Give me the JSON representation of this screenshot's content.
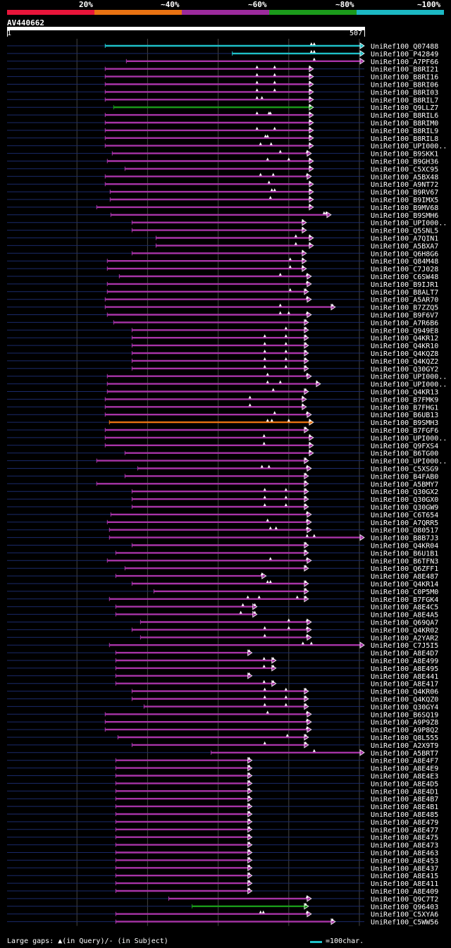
{
  "legend": {
    "colors": [
      "#e8153a",
      "#e87212",
      "#9b2a9c",
      "#1b9a1b",
      "#1cb8c4"
    ],
    "labels": [
      "20%",
      "~40%",
      "~60%",
      "~80%",
      "~100%"
    ]
  },
  "query": {
    "id": "AV440662",
    "start": "1",
    "end": "507",
    "length": 507
  },
  "colors": {
    "cyan": "#1ec0c8",
    "magenta": "#a834a8",
    "green": "#1a9a1a",
    "orange": "#e87212",
    "query_line": "#1a2a6a",
    "grid": "#444"
  },
  "hits": [
    {
      "name": "UniRef100_Q07488",
      "s": 140,
      "e": 507,
      "c": "cyan",
      "t": [
        432,
        436
      ]
    },
    {
      "name": "UniRef100_P42849",
      "s": 320,
      "e": 507,
      "c": "cyan",
      "t": [
        432,
        436
      ]
    },
    {
      "name": "UniRef100_A7PF66",
      "s": 170,
      "e": 507,
      "c": "magenta",
      "t": [
        436
      ]
    },
    {
      "name": "UniRef100_B8RI21",
      "s": 140,
      "e": 435,
      "c": "magenta",
      "t": [
        355,
        380,
        430
      ]
    },
    {
      "name": "UniRef100_B8RI16",
      "s": 140,
      "e": 435,
      "c": "magenta",
      "t": [
        355,
        380,
        430
      ]
    },
    {
      "name": "UniRef100_B8RI06",
      "s": 140,
      "e": 435,
      "c": "magenta",
      "t": [
        355,
        380,
        430
      ]
    },
    {
      "name": "UniRef100_B8RI03",
      "s": 140,
      "e": 435,
      "c": "magenta",
      "t": [
        355,
        380,
        430
      ]
    },
    {
      "name": "UniRef100_B8RIL7",
      "s": 140,
      "e": 435,
      "c": "magenta",
      "t": [
        355,
        362,
        430
      ]
    },
    {
      "name": "UniRef100_Q9LLZ7",
      "s": 152,
      "e": 435,
      "c": "green",
      "t": [
        430
      ]
    },
    {
      "name": "UniRef100_B8RIL6",
      "s": 140,
      "e": 435,
      "c": "magenta",
      "t": [
        355,
        372,
        374,
        430
      ]
    },
    {
      "name": "UniRef100_B8RIM0",
      "s": 140,
      "e": 435,
      "c": "magenta",
      "t": [
        430
      ]
    },
    {
      "name": "UniRef100_B8RIL9",
      "s": 140,
      "e": 435,
      "c": "magenta",
      "t": [
        355,
        380,
        430
      ]
    },
    {
      "name": "UniRef100_B8RIL8",
      "s": 140,
      "e": 435,
      "c": "magenta",
      "t": [
        367,
        370,
        430
      ]
    },
    {
      "name": "UniRef100_UPI000..",
      "s": 140,
      "e": 435,
      "c": "magenta",
      "t": [
        360,
        375,
        430
      ]
    },
    {
      "name": "UniRef100_B9SKK1",
      "s": 150,
      "e": 432,
      "c": "magenta",
      "t": [
        388,
        426
      ]
    },
    {
      "name": "UniRef100_B9GH36",
      "s": 143,
      "e": 435,
      "c": "magenta",
      "t": [
        370,
        400,
        430
      ]
    },
    {
      "name": "UniRef100_C5XC95",
      "s": 168,
      "e": 435,
      "c": "magenta",
      "t": [
        430
      ]
    },
    {
      "name": "UniRef100_A5BX48",
      "s": 140,
      "e": 432,
      "c": "magenta",
      "t": [
        360,
        378,
        426
      ]
    },
    {
      "name": "UniRef100_A9NT72",
      "s": 140,
      "e": 435,
      "c": "magenta",
      "t": [
        372,
        430
      ]
    },
    {
      "name": "UniRef100_B9RV67",
      "s": 147,
      "e": 435,
      "c": "magenta",
      "t": [
        376,
        380,
        430
      ]
    },
    {
      "name": "UniRef100_B9IMX5",
      "s": 147,
      "e": 435,
      "c": "magenta",
      "t": [
        374,
        430
      ]
    },
    {
      "name": "UniRef100_B9MV68",
      "s": 128,
      "e": 435,
      "c": "magenta",
      "t": [
        430
      ]
    },
    {
      "name": "UniRef100_B9SMH6",
      "s": 148,
      "e": 460,
      "c": "magenta",
      "t": [
        450,
        453
      ]
    },
    {
      "name": "UniRef100_UPI000..",
      "s": 178,
      "e": 425,
      "c": "magenta",
      "t": [
        420
      ]
    },
    {
      "name": "UniRef100_Q5SNL5",
      "s": 178,
      "e": 425,
      "c": "magenta",
      "t": [
        420
      ]
    },
    {
      "name": "UniRef100_A7QIN1",
      "s": 212,
      "e": 435,
      "c": "magenta",
      "t": [
        410,
        430
      ]
    },
    {
      "name": "UniRef100_A5BXA7",
      "s": 212,
      "e": 435,
      "c": "magenta",
      "t": [
        410,
        430
      ]
    },
    {
      "name": "UniRef100_Q6H8G6",
      "s": 178,
      "e": 425,
      "c": "magenta",
      "t": [
        420
      ]
    },
    {
      "name": "UniRef100_Q84M48",
      "s": 143,
      "e": 425,
      "c": "magenta",
      "t": [
        402,
        420
      ]
    },
    {
      "name": "UniRef100_C7J028",
      "s": 143,
      "e": 425,
      "c": "magenta",
      "t": [
        402,
        420
      ]
    },
    {
      "name": "UniRef100_C6SW48",
      "s": 160,
      "e": 432,
      "c": "magenta",
      "t": [
        388,
        426
      ]
    },
    {
      "name": "UniRef100_B9IJR1",
      "s": 143,
      "e": 432,
      "c": "magenta",
      "t": [
        426
      ]
    },
    {
      "name": "UniRef100_B8ALT7",
      "s": 143,
      "e": 428,
      "c": "magenta",
      "t": [
        402,
        424
      ]
    },
    {
      "name": "UniRef100_A5AR70",
      "s": 140,
      "e": 432,
      "c": "magenta",
      "t": [
        426
      ]
    },
    {
      "name": "UniRef100_B7ZZQ5",
      "s": 140,
      "e": 466,
      "c": "magenta",
      "t": [
        388,
        462
      ]
    },
    {
      "name": "UniRef100_B9F6V7",
      "s": 143,
      "e": 432,
      "c": "magenta",
      "t": [
        388,
        400,
        426
      ]
    },
    {
      "name": "UniRef100_A7R6B6",
      "s": 152,
      "e": 428,
      "c": "magenta",
      "t": [
        424
      ]
    },
    {
      "name": "UniRef100_Q949E8",
      "s": 178,
      "e": 428,
      "c": "magenta",
      "t": [
        396,
        424
      ]
    },
    {
      "name": "UniRef100_Q4KR12",
      "s": 178,
      "e": 428,
      "c": "magenta",
      "t": [
        366,
        396,
        424
      ]
    },
    {
      "name": "UniRef100_Q4KR10",
      "s": 178,
      "e": 428,
      "c": "magenta",
      "t": [
        366,
        396,
        424
      ]
    },
    {
      "name": "UniRef100_Q4KQZ8",
      "s": 178,
      "e": 428,
      "c": "magenta",
      "t": [
        366,
        396,
        424
      ]
    },
    {
      "name": "UniRef100_Q4KQZ2",
      "s": 178,
      "e": 428,
      "c": "magenta",
      "t": [
        366,
        396,
        424
      ]
    },
    {
      "name": "UniRef100_Q30GY2",
      "s": 178,
      "e": 428,
      "c": "magenta",
      "t": [
        366,
        396,
        424
      ]
    },
    {
      "name": "UniRef100_UPI000..",
      "s": 143,
      "e": 432,
      "c": "magenta",
      "t": [
        370,
        426
      ]
    },
    {
      "name": "UniRef100_UPI000..",
      "s": 143,
      "e": 445,
      "c": "magenta",
      "t": [
        370,
        388,
        440
      ]
    },
    {
      "name": "UniRef100_Q4KR13",
      "s": 143,
      "e": 428,
      "c": "magenta",
      "t": [
        378,
        424
      ]
    },
    {
      "name": "UniRef100_B7FMK9",
      "s": 140,
      "e": 425,
      "c": "magenta",
      "t": [
        345,
        420
      ]
    },
    {
      "name": "UniRef100_B7FHG1",
      "s": 140,
      "e": 425,
      "c": "magenta",
      "t": [
        345,
        420
      ]
    },
    {
      "name": "UniRef100_B6UB13",
      "s": 140,
      "e": 432,
      "c": "magenta",
      "t": [
        380,
        426
      ]
    },
    {
      "name": "UniRef100_B9SMH3",
      "s": 146,
      "e": 435,
      "c": "orange",
      "t": [
        370,
        376,
        400,
        430
      ]
    },
    {
      "name": "UniRef100_B7FGF6",
      "s": 140,
      "e": 428,
      "c": "magenta",
      "t": [
        424
      ]
    },
    {
      "name": "UniRef100_UPI000..",
      "s": 140,
      "e": 435,
      "c": "magenta",
      "t": [
        365,
        430
      ]
    },
    {
      "name": "UniRef100_Q9FXS4",
      "s": 140,
      "e": 435,
      "c": "magenta",
      "t": [
        365,
        430
      ]
    },
    {
      "name": "UniRef100_B6TG00",
      "s": 168,
      "e": 435,
      "c": "magenta",
      "t": [
        430
      ]
    },
    {
      "name": "UniRef100_UPI000..",
      "s": 128,
      "e": 428,
      "c": "magenta",
      "t": [
        424
      ]
    },
    {
      "name": "UniRef100_C5XSG9",
      "s": 186,
      "e": 432,
      "c": "magenta",
      "t": [
        362,
        372,
        426
      ]
    },
    {
      "name": "UniRef100_B4FAB0",
      "s": 168,
      "e": 428,
      "c": "magenta",
      "t": [
        424
      ]
    },
    {
      "name": "UniRef100_A5BMY7",
      "s": 128,
      "e": 428,
      "c": "magenta",
      "t": [
        424
      ]
    },
    {
      "name": "UniRef100_Q30GX2",
      "s": 178,
      "e": 428,
      "c": "magenta",
      "t": [
        366,
        396,
        424
      ]
    },
    {
      "name": "UniRef100_Q30GX0",
      "s": 178,
      "e": 428,
      "c": "magenta",
      "t": [
        366,
        396,
        424
      ]
    },
    {
      "name": "UniRef100_Q30GW9",
      "s": 178,
      "e": 428,
      "c": "magenta",
      "t": [
        366,
        396,
        424
      ]
    },
    {
      "name": "UniRef100_C6T654",
      "s": 148,
      "e": 432,
      "c": "magenta",
      "t": [
        426
      ]
    },
    {
      "name": "UniRef100_A7QRR5",
      "s": 143,
      "e": 432,
      "c": "magenta",
      "t": [
        370,
        426
      ]
    },
    {
      "name": "UniRef100_O80517",
      "s": 146,
      "e": 432,
      "c": "magenta",
      "t": [
        374,
        382,
        426
      ]
    },
    {
      "name": "UniRef100_B8B7J3",
      "s": 146,
      "e": 507,
      "c": "magenta",
      "t": [
        426,
        436
      ]
    },
    {
      "name": "UniRef100_Q4KR04",
      "s": 178,
      "e": 428,
      "c": "magenta",
      "t": [
        424
      ]
    },
    {
      "name": "UniRef100_B6U1B1",
      "s": 155,
      "e": 428,
      "c": "magenta",
      "t": [
        424
      ]
    },
    {
      "name": "UniRef100_B6TFN3",
      "s": 143,
      "e": 432,
      "c": "magenta",
      "t": [
        374,
        426
      ]
    },
    {
      "name": "UniRef100_Q6ZFF1",
      "s": 168,
      "e": 428,
      "c": "magenta",
      "t": [
        424
      ]
    },
    {
      "name": "UniRef100_A8E487",
      "s": 155,
      "e": 368,
      "c": "magenta",
      "t": [
        362
      ]
    },
    {
      "name": "UniRef100_Q4KR14",
      "s": 178,
      "e": 428,
      "c": "magenta",
      "t": [
        370,
        374,
        424
      ]
    },
    {
      "name": "UniRef100_C0P5M0",
      "s": 209,
      "e": 428,
      "c": "magenta",
      "t": [
        424
      ]
    },
    {
      "name": "UniRef100_B7FGK4",
      "s": 146,
      "e": 428,
      "c": "magenta",
      "t": [
        342,
        358,
        412,
        424
      ]
    },
    {
      "name": "UniRef100_A8E4C5",
      "s": 155,
      "e": 355,
      "c": "magenta",
      "t": [
        335,
        352
      ]
    },
    {
      "name": "UniRef100_A8E4A5",
      "s": 155,
      "e": 355,
      "c": "magenta",
      "t": [
        332,
        352
      ]
    },
    {
      "name": "UniRef100_Q69QA7",
      "s": 190,
      "e": 432,
      "c": "magenta",
      "t": [
        400,
        426
      ]
    },
    {
      "name": "UniRef100_Q4KR02",
      "s": 178,
      "e": 432,
      "c": "magenta",
      "t": [
        366,
        400,
        426
      ]
    },
    {
      "name": "UniRef100_A2YAR2",
      "s": 190,
      "e": 432,
      "c": "magenta",
      "t": [
        366,
        426
      ]
    },
    {
      "name": "UniRef100_C7J5I5",
      "s": 146,
      "e": 507,
      "c": "magenta",
      "t": [
        420,
        432
      ]
    },
    {
      "name": "UniRef100_A8E4D7",
      "s": 155,
      "e": 348,
      "c": "magenta",
      "t": [
        344
      ]
    },
    {
      "name": "UniRef100_A8E499",
      "s": 155,
      "e": 382,
      "c": "magenta",
      "t": [
        365,
        378
      ]
    },
    {
      "name": "UniRef100_A8E495",
      "s": 155,
      "e": 382,
      "c": "magenta",
      "t": [
        365,
        378
      ]
    },
    {
      "name": "UniRef100_A8E441",
      "s": 155,
      "e": 348,
      "c": "magenta",
      "t": [
        344
      ]
    },
    {
      "name": "UniRef100_A8E417",
      "s": 155,
      "e": 382,
      "c": "magenta",
      "t": [
        365,
        378
      ]
    },
    {
      "name": "UniRef100_Q4KR06",
      "s": 178,
      "e": 428,
      "c": "magenta",
      "t": [
        366,
        396,
        424
      ]
    },
    {
      "name": "UniRef100_Q4KQZ0",
      "s": 178,
      "e": 428,
      "c": "magenta",
      "t": [
        366,
        396,
        424
      ]
    },
    {
      "name": "UniRef100_Q30GY4",
      "s": 195,
      "e": 428,
      "c": "magenta",
      "t": [
        366,
        396,
        424
      ]
    },
    {
      "name": "UniRef100_B6SQ19",
      "s": 140,
      "e": 432,
      "c": "magenta",
      "t": [
        370,
        426
      ]
    },
    {
      "name": "UniRef100_A9P9Z8",
      "s": 140,
      "e": 432,
      "c": "magenta",
      "t": [
        426
      ]
    },
    {
      "name": "UniRef100_A9P8Q2",
      "s": 140,
      "e": 432,
      "c": "magenta",
      "t": [
        426
      ]
    },
    {
      "name": "UniRef100_Q8L555",
      "s": 158,
      "e": 428,
      "c": "magenta",
      "t": [
        398,
        424
      ]
    },
    {
      "name": "UniRef100_A2X9T9",
      "s": 178,
      "e": 428,
      "c": "magenta",
      "t": [
        366,
        424
      ]
    },
    {
      "name": "UniRef100_A5BRT7",
      "s": 290,
      "e": 507,
      "c": "magenta",
      "t": [
        436
      ]
    },
    {
      "name": "UniRef100_A8E4F7",
      "s": 155,
      "e": 348,
      "c": "magenta",
      "t": [
        344
      ]
    },
    {
      "name": "UniRef100_A8E4E9",
      "s": 155,
      "e": 348,
      "c": "magenta",
      "t": [
        344
      ]
    },
    {
      "name": "UniRef100_A8E4E3",
      "s": 155,
      "e": 348,
      "c": "magenta",
      "t": [
        344
      ]
    },
    {
      "name": "UniRef100_A8E4D5",
      "s": 155,
      "e": 348,
      "c": "magenta",
      "t": [
        344
      ]
    },
    {
      "name": "UniRef100_A8E4D1",
      "s": 155,
      "e": 348,
      "c": "magenta",
      "t": [
        344
      ]
    },
    {
      "name": "UniRef100_A8E4B7",
      "s": 155,
      "e": 348,
      "c": "magenta",
      "t": [
        344
      ]
    },
    {
      "name": "UniRef100_A8E4B1",
      "s": 155,
      "e": 348,
      "c": "magenta",
      "t": [
        344
      ]
    },
    {
      "name": "UniRef100_A8E485",
      "s": 155,
      "e": 348,
      "c": "magenta",
      "t": [
        344
      ]
    },
    {
      "name": "UniRef100_A8E479",
      "s": 155,
      "e": 348,
      "c": "magenta",
      "t": [
        344
      ]
    },
    {
      "name": "UniRef100_A8E477",
      "s": 155,
      "e": 348,
      "c": "magenta",
      "t": [
        344
      ]
    },
    {
      "name": "UniRef100_A8E475",
      "s": 155,
      "e": 348,
      "c": "magenta",
      "t": [
        344
      ]
    },
    {
      "name": "UniRef100_A8E473",
      "s": 155,
      "e": 348,
      "c": "magenta",
      "t": [
        344
      ]
    },
    {
      "name": "UniRef100_A8E463",
      "s": 155,
      "e": 348,
      "c": "magenta",
      "t": [
        344
      ]
    },
    {
      "name": "UniRef100_A8E453",
      "s": 155,
      "e": 348,
      "c": "magenta",
      "t": [
        344
      ]
    },
    {
      "name": "UniRef100_A8E437",
      "s": 155,
      "e": 348,
      "c": "magenta",
      "t": [
        344
      ]
    },
    {
      "name": "UniRef100_A8E415",
      "s": 155,
      "e": 348,
      "c": "magenta",
      "t": [
        344
      ]
    },
    {
      "name": "UniRef100_A8E411",
      "s": 155,
      "e": 348,
      "c": "magenta",
      "t": [
        344
      ]
    },
    {
      "name": "UniRef100_A8E409",
      "s": 155,
      "e": 348,
      "c": "magenta",
      "t": [
        344
      ]
    },
    {
      "name": "UniRef100_Q9C7T2",
      "s": 230,
      "e": 432,
      "c": "magenta",
      "t": [
        426
      ]
    },
    {
      "name": "UniRef100_Q96403",
      "s": 263,
      "e": 428,
      "c": "green",
      "t": [
        424
      ]
    },
    {
      "name": "UniRef100_C5XYA6",
      "s": 155,
      "e": 432,
      "c": "magenta",
      "t": [
        360,
        364,
        426
      ]
    },
    {
      "name": "UniRef100_C5WW56",
      "s": 155,
      "e": 466,
      "c": "magenta",
      "t": [
        462
      ]
    }
  ],
  "footer": {
    "gap_legend": "Large gaps: ▲(in Query)/- (in Subject)",
    "scale_legend": "=100char."
  }
}
